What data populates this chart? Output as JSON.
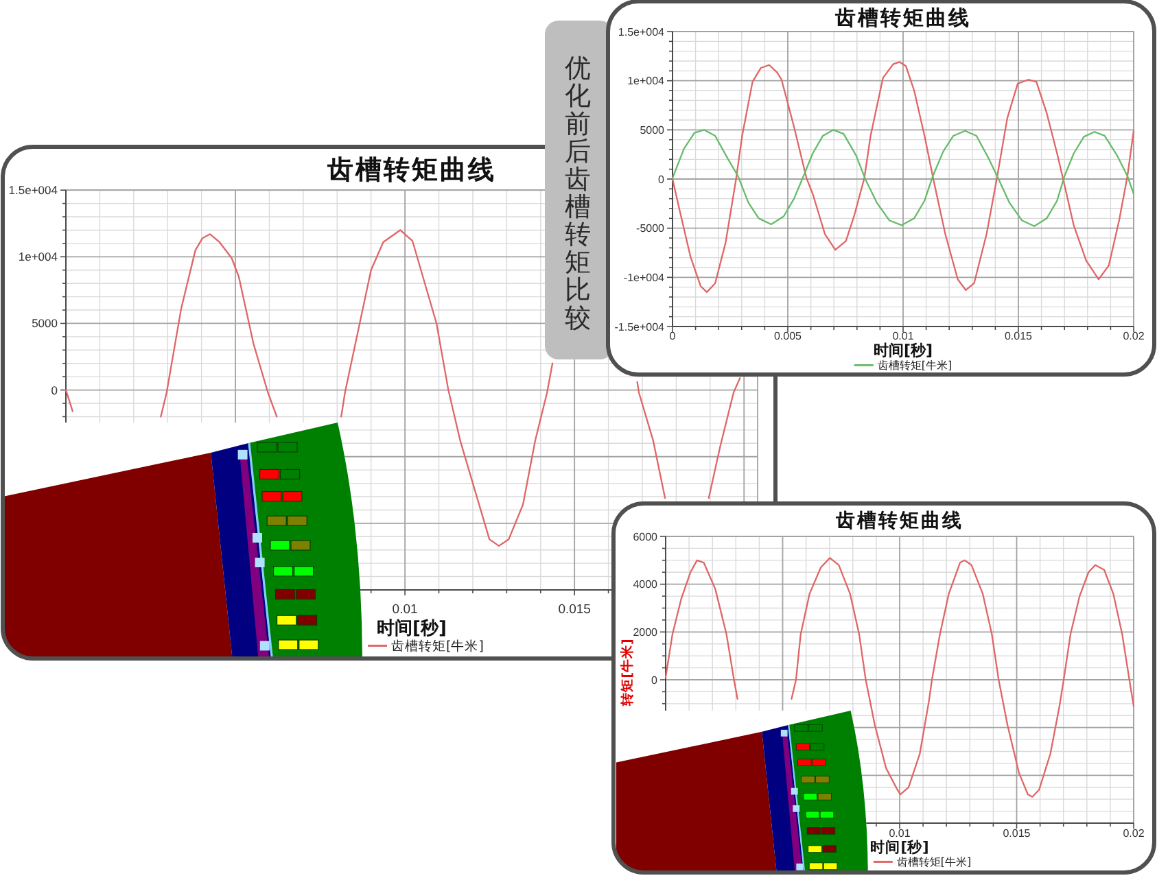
{
  "chart_data": [
    {
      "type": "line",
      "title": "齿槽转矩曲线",
      "xlabel": "时间[秒]",
      "xlim": [
        0,
        0.0204
      ],
      "ylim": [
        -15000,
        15000
      ],
      "xticks": [
        {
          "value": 0,
          "label": null
        },
        {
          "value": 0.001,
          "label": null
        },
        {
          "value": 0.002,
          "label": null
        },
        {
          "value": 0.003,
          "label": null
        },
        {
          "value": 0.004,
          "label": null
        },
        {
          "value": 0.005,
          "label": null
        },
        {
          "value": 0.006,
          "label": null
        },
        {
          "value": 0.007,
          "label": null
        },
        {
          "value": 0.008,
          "label": null
        },
        {
          "value": 0.009,
          "label": null
        },
        0.01,
        {
          "value": 0.011,
          "label": null
        },
        {
          "value": 0.012,
          "label": null
        },
        {
          "value": 0.013,
          "label": null
        },
        {
          "value": 0.014,
          "label": null
        },
        0.015,
        {
          "value": 0.016,
          "label": null
        },
        {
          "value": 0.017,
          "label": null
        },
        {
          "value": 0.018,
          "label": null
        },
        {
          "value": 0.019,
          "label": null
        },
        {
          "value": 0.02,
          "label": null
        }
      ],
      "yticks": [
        {
          "value": -15000,
          "label": null
        },
        {
          "value": -14000,
          "label": null
        },
        {
          "value": -13000,
          "label": null
        },
        {
          "value": -12000,
          "label": null
        },
        {
          "value": -11000,
          "label": null
        },
        {
          "value": -10000,
          "label": null
        },
        {
          "value": -9000,
          "label": null
        },
        {
          "value": -8000,
          "label": null
        },
        {
          "value": -7000,
          "label": null
        },
        {
          "value": -6000,
          "label": null
        },
        {
          "value": -5000,
          "label": null
        },
        {
          "value": -4000,
          "label": null
        },
        {
          "value": -3000,
          "label": null
        },
        {
          "value": -2000,
          "label": null
        },
        {
          "value": -1000,
          "label": null
        },
        0,
        {
          "value": 1000,
          "label": null
        },
        {
          "value": 2000,
          "label": null
        },
        {
          "value": 3000,
          "label": null
        },
        {
          "value": 4000,
          "label": null
        },
        5000,
        {
          "value": 6000,
          "label": null
        },
        {
          "value": 7000,
          "label": null
        },
        {
          "value": 8000,
          "label": null
        },
        {
          "value": 9000,
          "label": null
        },
        {
          "value": 10000,
          "label": "1e+004"
        },
        {
          "value": 11000,
          "label": null
        },
        {
          "value": 12000,
          "label": null
        },
        {
          "value": 13000,
          "label": null
        },
        {
          "value": 14000,
          "label": null
        },
        {
          "value": 15000,
          "label": "1.5e+004"
        }
      ],
      "grid": true,
      "legend": "bottom",
      "series": [
        {
          "name": "齿槽转矩[牛米]",
          "color": "#e06666",
          "x": [
            0,
            0.0002,
            0.0014,
            0.0028,
            0.00297,
            0.0034,
            0.00382,
            0.00403,
            0.00425,
            0.00453,
            0.00489,
            0.0051,
            0.00553,
            0.00596,
            0.00622,
            0.0071,
            0.00812,
            0.00823,
            0.009,
            0.00936,
            0.00986,
            0.01022,
            0.01093,
            0.01128,
            0.01163,
            0.01206,
            0.01249,
            0.01277,
            0.01306,
            0.01348,
            0.01384,
            0.01419,
            0.01435,
            0.0157,
            0.01685,
            0.0169,
            0.01732,
            0.01767,
            0.0183,
            0.01896,
            0.0193,
            0.01969,
            0.01988
          ],
          "values": [
            0,
            -1600,
            null,
            -2000,
            -200,
            6100,
            10500,
            11400,
            11700,
            11100,
            9900,
            8500,
            3500,
            -200,
            -2000,
            null,
            -2000,
            -200,
            9000,
            11100,
            12000,
            11200,
            5000,
            0,
            -3800,
            -7500,
            -11200,
            -11700,
            -11200,
            -8600,
            -3800,
            -200,
            2000,
            null,
            600,
            -200,
            -3800,
            -8100,
            null,
            -8100,
            -4200,
            -200,
            900
          ]
        }
      ]
    },
    {
      "type": "other",
      "title": "优化前后齿槽转矩比较"
    },
    {
      "type": "line",
      "title": "齿槽转矩曲线",
      "xlabel": "时间[秒]",
      "xlim": [
        0,
        0.02
      ],
      "ylim": [
        -15000,
        15000
      ],
      "xticks": [
        0,
        {
          "value": 0.001,
          "label": null
        },
        {
          "value": 0.002,
          "label": null
        },
        {
          "value": 0.003,
          "label": null
        },
        {
          "value": 0.004,
          "label": null
        },
        0.005,
        {
          "value": 0.006,
          "label": null
        },
        {
          "value": 0.007,
          "label": null
        },
        {
          "value": 0.008,
          "label": null
        },
        {
          "value": 0.009,
          "label": null
        },
        0.01,
        {
          "value": 0.011,
          "label": null
        },
        {
          "value": 0.012,
          "label": null
        },
        {
          "value": 0.013,
          "label": null
        },
        {
          "value": 0.014,
          "label": null
        },
        0.015,
        {
          "value": 0.016,
          "label": null
        },
        {
          "value": 0.017,
          "label": null
        },
        {
          "value": 0.018,
          "label": null
        },
        {
          "value": 0.019,
          "label": null
        },
        0.02
      ],
      "yticks": [
        {
          "value": -15000,
          "label": "-1.5e+004"
        },
        {
          "value": -14000,
          "label": null
        },
        {
          "value": -13000,
          "label": null
        },
        {
          "value": -12000,
          "label": null
        },
        {
          "value": -11000,
          "label": null
        },
        {
          "value": -10000,
          "label": "-1e+004"
        },
        {
          "value": -9000,
          "label": null
        },
        {
          "value": -8000,
          "label": null
        },
        {
          "value": -7000,
          "label": null
        },
        {
          "value": -6000,
          "label": null
        },
        -5000,
        {
          "value": -4000,
          "label": null
        },
        {
          "value": -3000,
          "label": null
        },
        {
          "value": -2000,
          "label": null
        },
        {
          "value": -1000,
          "label": null
        },
        0,
        {
          "value": 1000,
          "label": null
        },
        {
          "value": 2000,
          "label": null
        },
        {
          "value": 3000,
          "label": null
        },
        {
          "value": 4000,
          "label": null
        },
        5000,
        {
          "value": 6000,
          "label": null
        },
        {
          "value": 7000,
          "label": null
        },
        {
          "value": 8000,
          "label": null
        },
        {
          "value": 9000,
          "label": null
        },
        {
          "value": 10000,
          "label": "1e+004"
        },
        {
          "value": 11000,
          "label": null
        },
        {
          "value": 12000,
          "label": null
        },
        {
          "value": 13000,
          "label": null
        },
        {
          "value": 14000,
          "label": null
        },
        {
          "value": 15000,
          "label": "1.5e+004"
        }
      ],
      "grid": true,
      "legend": "bottom",
      "series": [
        {
          "color": "#e06666",
          "x": [
            0,
            0.00032,
            0.00078,
            0.00122,
            0.00149,
            0.00185,
            0.0023,
            0.00275,
            0.00302,
            0.00347,
            0.00383,
            0.00419,
            0.00455,
            0.00473,
            0.00527,
            0.00581,
            0.00608,
            0.00661,
            0.00706,
            0.00752,
            0.00787,
            0.00832,
            0.00859,
            0.00913,
            0.00958,
            0.00985,
            0.01012,
            0.01048,
            0.01093,
            0.01132,
            0.01183,
            0.01237,
            0.01272,
            0.01308,
            0.01362,
            0.01407,
            0.01452,
            0.01497,
            0.01542,
            0.01578,
            0.01623,
            0.01668,
            0.01695,
            0.0174,
            0.01794,
            0.01848,
            0.01892,
            0.01937,
            0.01973,
            0.02
          ],
          "values": [
            0,
            -3300,
            -7900,
            -10900,
            -11500,
            -10600,
            -6500,
            -100,
            4400,
            9900,
            11300,
            11600,
            10800,
            10100,
            5300,
            100,
            -1500,
            -5600,
            -7200,
            -6300,
            -3800,
            100,
            4400,
            10300,
            11700,
            11900,
            11500,
            9000,
            4400,
            -100,
            -5600,
            -10200,
            -11300,
            -10600,
            -5600,
            100,
            6200,
            9700,
            10100,
            9900,
            6700,
            2600,
            -100,
            -4700,
            -8300,
            -10200,
            -8800,
            -4200,
            300,
            4900
          ]
        },
        {
          "name": "齿槽转矩[牛米]",
          "color": "#66bb6a",
          "x": [
            0,
            0.0005,
            0.00095,
            0.00137,
            0.00185,
            0.00239,
            0.00284,
            0.00329,
            0.00374,
            0.00428,
            0.00482,
            0.00527,
            0.00568,
            0.00608,
            0.00652,
            0.00698,
            0.00742,
            0.00796,
            0.00838,
            0.00886,
            0.0094,
            0.00994,
            0.01048,
            0.01093,
            0.01129,
            0.01174,
            0.01218,
            0.01269,
            0.01318,
            0.01371,
            0.01416,
            0.01461,
            0.01515,
            0.01569,
            0.01623,
            0.01668,
            0.017,
            0.0174,
            0.01784,
            0.0183,
            0.01874,
            0.01928,
            0.01973,
            0.02
          ],
          "values": [
            100,
            3100,
            4700,
            5000,
            4400,
            2100,
            300,
            -2400,
            -4000,
            -4600,
            -3800,
            -2000,
            300,
            2600,
            4400,
            5000,
            4600,
            2400,
            -100,
            -2400,
            -4200,
            -4700,
            -4000,
            -2200,
            300,
            2800,
            4400,
            4900,
            4400,
            2100,
            -100,
            -2400,
            -4200,
            -4800,
            -4000,
            -2200,
            300,
            2600,
            4300,
            4800,
            4400,
            2400,
            300,
            -1500
          ]
        }
      ]
    },
    {
      "type": "line",
      "title": "齿槽转矩曲线",
      "xlabel": "时间[秒]",
      "ylabel": "转矩[牛米]",
      "xlim": [
        0,
        0.02
      ],
      "ylim": [
        -6000,
        6000
      ],
      "xticks": [
        {
          "value": 0,
          "label": null
        },
        {
          "value": 0.001,
          "label": null
        },
        {
          "value": 0.002,
          "label": null
        },
        {
          "value": 0.003,
          "label": null
        },
        {
          "value": 0.004,
          "label": null
        },
        {
          "value": 0.005,
          "label": null
        },
        {
          "value": 0.006,
          "label": null
        },
        {
          "value": 0.007,
          "label": null
        },
        {
          "value": 0.008,
          "label": null
        },
        {
          "value": 0.009,
          "label": null
        },
        0.01,
        {
          "value": 0.011,
          "label": null
        },
        {
          "value": 0.012,
          "label": null
        },
        {
          "value": 0.013,
          "label": null
        },
        {
          "value": 0.014,
          "label": null
        },
        0.015,
        {
          "value": 0.016,
          "label": null
        },
        {
          "value": 0.017,
          "label": null
        },
        {
          "value": 0.018,
          "label": null
        },
        {
          "value": 0.019,
          "label": null
        },
        0.02
      ],
      "yticks": [
        {
          "value": -6000,
          "label": null
        },
        {
          "value": -5500,
          "label": null
        },
        {
          "value": -5000,
          "label": null
        },
        {
          "value": -4500,
          "label": null
        },
        {
          "value": -4000,
          "label": null
        },
        {
          "value": -3500,
          "label": null
        },
        {
          "value": -3000,
          "label": null
        },
        {
          "value": -2500,
          "label": null
        },
        {
          "value": -2000,
          "label": null
        },
        {
          "value": -1500,
          "label": null
        },
        {
          "value": -1000,
          "label": null
        },
        {
          "value": -500,
          "label": null
        },
        0,
        {
          "value": 500,
          "label": null
        },
        {
          "value": 1000,
          "label": null
        },
        {
          "value": 1500,
          "label": null
        },
        2000,
        {
          "value": 2500,
          "label": null
        },
        {
          "value": 3000,
          "label": null
        },
        {
          "value": 3500,
          "label": null
        },
        4000,
        {
          "value": 4500,
          "label": null
        },
        {
          "value": 5000,
          "label": null
        },
        {
          "value": 5500,
          "label": null
        },
        6000
      ],
      "grid": true,
      "legend": "bottom",
      "series": [
        {
          "name": "齿槽转矩[牛米]",
          "color": "#e06666",
          "x": [
            0,
            0.00029,
            0.00067,
            0.00106,
            0.00134,
            0.00163,
            0.00212,
            0.0026,
            0.00292,
            0.00307,
            0.0042,
            0.00538,
            0.00557,
            0.00577,
            0.00615,
            0.00663,
            0.00702,
            0.0074,
            0.00788,
            0.00827,
            0.00855,
            0.00894,
            0.00942,
            0.0099,
            0.01003,
            0.01038,
            0.01086,
            0.01125,
            0.01138,
            0.01172,
            0.0121,
            0.01258,
            0.01278,
            0.01307,
            0.01355,
            0.01394,
            0.01423,
            0.01461,
            0.0151,
            0.01548,
            0.01567,
            0.01596,
            0.01644,
            0.01683,
            0.01701,
            0.0173,
            0.01769,
            0.01807,
            0.01836,
            0.01874,
            0.01913,
            0.01951,
            0.0198,
            0.02
          ],
          "values": [
            100,
            1900,
            3400,
            4500,
            5000,
            4900,
            3800,
            1900,
            0,
            -800,
            null,
            -800,
            0,
            1900,
            3600,
            4700,
            5100,
            4800,
            3600,
            1900,
            0,
            -1900,
            -3700,
            -4600,
            -4800,
            -4500,
            -3100,
            -900,
            0,
            1900,
            3600,
            4900,
            5000,
            4800,
            3600,
            1900,
            0,
            -1900,
            -3900,
            -4800,
            -4900,
            -4600,
            -3100,
            -1100,
            0,
            1900,
            3500,
            4500,
            4800,
            4600,
            3600,
            1900,
            100,
            -1100
          ]
        }
      ]
    }
  ]
}
